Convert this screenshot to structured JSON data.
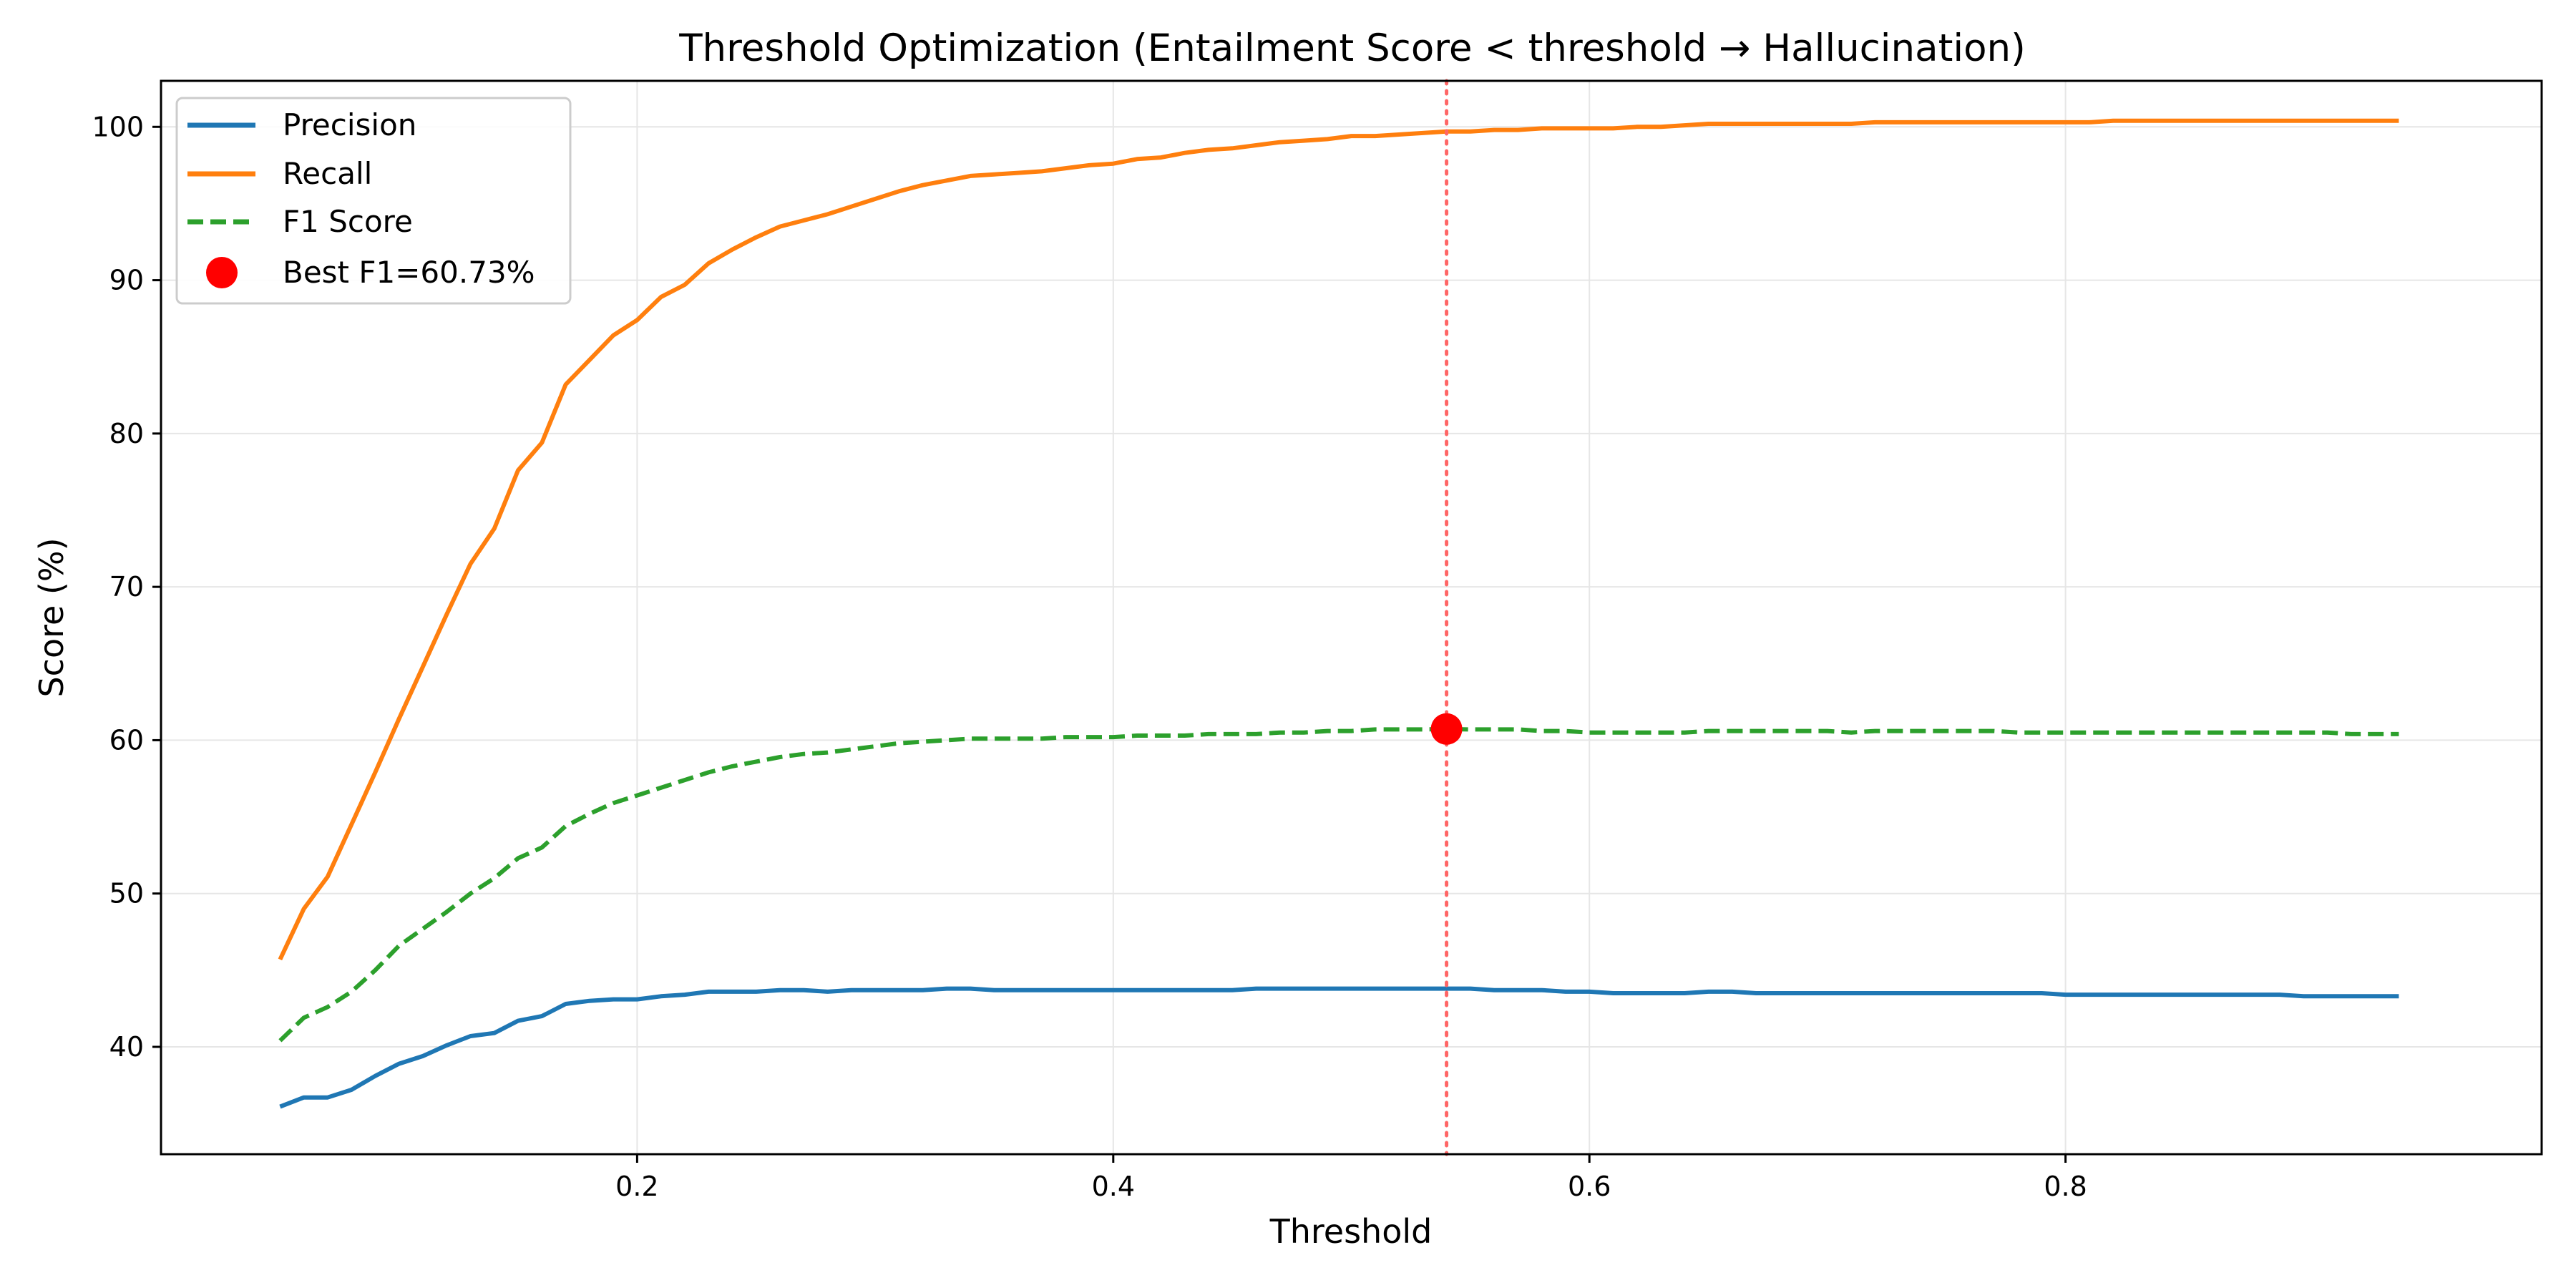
{
  "chart_data": {
    "type": "line",
    "title": "Threshold Optimization (Entailment Score < threshold → Hallucination)",
    "xlabel": "Threshold",
    "ylabel": "Score (%)",
    "xlim": [
      0.0,
      1.0
    ],
    "ylim": [
      33,
      103
    ],
    "xticks": [
      0.2,
      0.4,
      0.6,
      0.8
    ],
    "xtick_labels": [
      "0.2",
      "0.4",
      "0.6",
      "0.8"
    ],
    "yticks": [
      40,
      50,
      60,
      70,
      80,
      90,
      100
    ],
    "ytick_labels": [
      "40",
      "50",
      "60",
      "70",
      "80",
      "90",
      "100"
    ],
    "grid": true,
    "legend_position": "top-left",
    "x": [
      0.05,
      0.06,
      0.07,
      0.08,
      0.09,
      0.1,
      0.11,
      0.12,
      0.13,
      0.14,
      0.15,
      0.16,
      0.17,
      0.18,
      0.19,
      0.2,
      0.21,
      0.22,
      0.23,
      0.24,
      0.25,
      0.26,
      0.27,
      0.28,
      0.29,
      0.3,
      0.31,
      0.32,
      0.33,
      0.34,
      0.35,
      0.36,
      0.37,
      0.38,
      0.39,
      0.4,
      0.41,
      0.42,
      0.43,
      0.44,
      0.45,
      0.46,
      0.47,
      0.48,
      0.49,
      0.5,
      0.51,
      0.52,
      0.53,
      0.54,
      0.55,
      0.56,
      0.57,
      0.58,
      0.59,
      0.6,
      0.61,
      0.62,
      0.63,
      0.64,
      0.65,
      0.66,
      0.67,
      0.68,
      0.69,
      0.7,
      0.71,
      0.72,
      0.73,
      0.74,
      0.75,
      0.76,
      0.77,
      0.78,
      0.79,
      0.8,
      0.81,
      0.82,
      0.83,
      0.84,
      0.85,
      0.86,
      0.87,
      0.88,
      0.89,
      0.9,
      0.91,
      0.92,
      0.93,
      0.94
    ],
    "series": [
      {
        "name": "Precision",
        "color": "#1f77b4",
        "dash": "solid",
        "values": [
          36.1,
          36.7,
          36.7,
          37.2,
          38.1,
          38.9,
          39.4,
          40.1,
          40.7,
          40.9,
          41.7,
          42.0,
          42.8,
          43.0,
          43.1,
          43.1,
          43.3,
          43.4,
          43.6,
          43.6,
          43.6,
          43.7,
          43.7,
          43.6,
          43.7,
          43.7,
          43.7,
          43.7,
          43.8,
          43.8,
          43.7,
          43.7,
          43.7,
          43.7,
          43.7,
          43.7,
          43.7,
          43.7,
          43.7,
          43.7,
          43.7,
          43.8,
          43.8,
          43.8,
          43.8,
          43.8,
          43.8,
          43.8,
          43.8,
          43.8,
          43.8,
          43.7,
          43.7,
          43.7,
          43.6,
          43.6,
          43.5,
          43.5,
          43.5,
          43.5,
          43.6,
          43.6,
          43.5,
          43.5,
          43.5,
          43.5,
          43.5,
          43.5,
          43.5,
          43.5,
          43.5,
          43.5,
          43.5,
          43.5,
          43.5,
          43.4,
          43.4,
          43.4,
          43.4,
          43.4,
          43.4,
          43.4,
          43.4,
          43.4,
          43.4,
          43.3,
          43.3,
          43.3,
          43.3,
          43.3
        ]
      },
      {
        "name": "Recall",
        "color": "#ff7f0e",
        "dash": "solid",
        "values": [
          45.7,
          49.0,
          51.1,
          54.5,
          57.9,
          61.4,
          64.8,
          68.2,
          71.5,
          73.8,
          77.6,
          79.4,
          83.2,
          84.8,
          86.4,
          87.4,
          88.9,
          89.7,
          91.1,
          92.0,
          92.8,
          93.5,
          93.9,
          94.3,
          94.8,
          95.3,
          95.8,
          96.2,
          96.5,
          96.8,
          96.9,
          97.0,
          97.1,
          97.3,
          97.5,
          97.6,
          97.9,
          98.0,
          98.3,
          98.5,
          98.6,
          98.8,
          99.0,
          99.1,
          99.2,
          99.4,
          99.4,
          99.5,
          99.6,
          99.7,
          99.7,
          99.8,
          99.8,
          99.9,
          99.9,
          99.9,
          99.9,
          100.0,
          100.0,
          100.1,
          100.2,
          100.2,
          100.2,
          100.2,
          100.2,
          100.2,
          100.2,
          100.3,
          100.3,
          100.3,
          100.3,
          100.3,
          100.3,
          100.3,
          100.3,
          100.3,
          100.3,
          100.4,
          100.4,
          100.4,
          100.4,
          100.4,
          100.4,
          100.4,
          100.4,
          100.4,
          100.4,
          100.4,
          100.4,
          100.4
        ]
      },
      {
        "name": "F1 Score",
        "color": "#2ca02c",
        "dash": "dashed",
        "values": [
          40.4,
          41.9,
          42.6,
          43.6,
          45.0,
          46.6,
          47.7,
          48.8,
          50.0,
          51.0,
          52.3,
          53.0,
          54.4,
          55.2,
          55.9,
          56.4,
          56.9,
          57.4,
          57.9,
          58.3,
          58.6,
          58.9,
          59.1,
          59.2,
          59.4,
          59.6,
          59.8,
          59.9,
          60.0,
          60.1,
          60.1,
          60.1,
          60.1,
          60.2,
          60.2,
          60.2,
          60.3,
          60.3,
          60.3,
          60.4,
          60.4,
          60.4,
          60.5,
          60.5,
          60.6,
          60.6,
          60.7,
          60.7,
          60.7,
          60.73,
          60.7,
          60.7,
          60.7,
          60.6,
          60.6,
          60.5,
          60.5,
          60.5,
          60.5,
          60.5,
          60.6,
          60.6,
          60.6,
          60.6,
          60.6,
          60.6,
          60.5,
          60.6,
          60.6,
          60.6,
          60.6,
          60.6,
          60.6,
          60.5,
          60.5,
          60.5,
          60.5,
          60.5,
          60.5,
          60.5,
          60.5,
          60.5,
          60.5,
          60.5,
          60.5,
          60.5,
          60.5,
          60.4,
          60.4,
          60.4
        ]
      }
    ],
    "best_point": {
      "label": "Best F1=60.73%",
      "x": 0.54,
      "y": 60.73,
      "color": "#ff0000"
    },
    "threshold_line": {
      "x": 0.54,
      "color": "#ff6666"
    }
  }
}
